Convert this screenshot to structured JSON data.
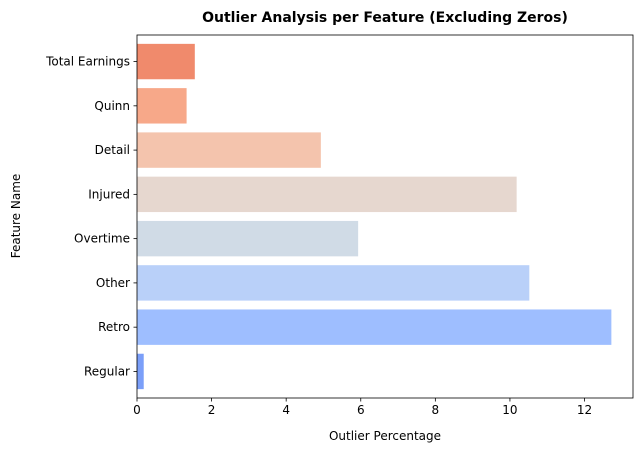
{
  "chart_data": {
    "type": "bar",
    "orientation": "horizontal",
    "title": "Outlier Analysis per Feature (Excluding Zeros)",
    "xlabel": "Outlier Percentage",
    "ylabel": "Feature Name",
    "xlim": [
      0,
      13.3
    ],
    "xticks": [
      "0",
      "2",
      "4",
      "6",
      "8",
      "10",
      "12"
    ],
    "grid": false,
    "categories": [
      "Regular",
      "Retro",
      "Other",
      "Overtime",
      "Injured",
      "Detail",
      "Quinn",
      "Total Earnings"
    ],
    "values": [
      0.18,
      12.72,
      10.52,
      5.93,
      10.18,
      4.93,
      1.33,
      1.55
    ],
    "colors": [
      "#7b9ff9",
      "#9ebeff",
      "#b9d0f9",
      "#d0dbe6",
      "#e6d7cf",
      "#f4c4ad",
      "#f7a889",
      "#f08a6c"
    ]
  }
}
